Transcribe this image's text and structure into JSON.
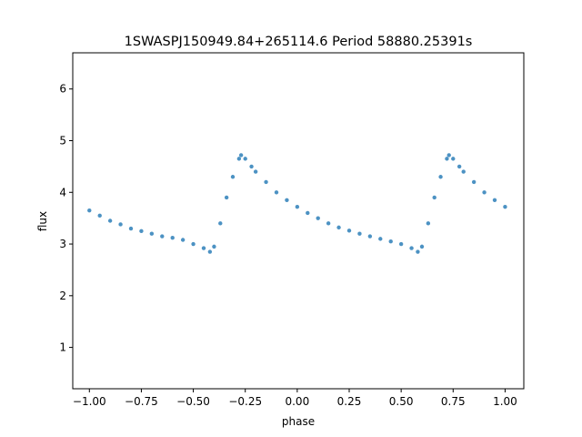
{
  "chart_data": {
    "type": "scatter",
    "title": "1SWASPJ150949.84+265114.6 Period 58880.25391s",
    "xlabel": "phase",
    "ylabel": "flux",
    "xlim": [
      -1.08,
      1.09
    ],
    "ylim": [
      0.2,
      6.7
    ],
    "xticks": [
      -1.0,
      -0.75,
      -0.5,
      -0.25,
      0.0,
      0.25,
      0.5,
      0.75,
      1.0
    ],
    "xtick_labels": [
      "−1.00",
      "−0.75",
      "−0.50",
      "−0.25",
      "0.00",
      "0.25",
      "0.50",
      "0.75",
      "1.00"
    ],
    "yticks": [
      1,
      2,
      3,
      4,
      5,
      6
    ],
    "ytick_labels": [
      "1",
      "2",
      "3",
      "4",
      "5",
      "6"
    ],
    "grid": false,
    "marker_color": "#1f77b4",
    "series": [
      {
        "x": [
          -1.0,
          -0.95,
          -0.9,
          -0.85,
          -0.8,
          -0.75,
          -0.7,
          -0.65,
          -0.6,
          -0.55,
          -0.5,
          -0.45,
          -0.42,
          -0.4,
          -0.37,
          -0.34,
          -0.31,
          -0.28,
          -0.27,
          -0.25,
          -0.22,
          -0.2,
          -0.15,
          -0.1,
          -0.05,
          0.0,
          0.05,
          0.1,
          0.15,
          0.2,
          0.25,
          0.3,
          0.35,
          0.4,
          0.45,
          0.5,
          0.55,
          0.58,
          0.6,
          0.63,
          0.66,
          0.69,
          0.72,
          0.73,
          0.75,
          0.78,
          0.8,
          0.85,
          0.9,
          0.95,
          1.0
        ],
        "y": [
          3.65,
          3.55,
          3.45,
          3.38,
          3.3,
          3.25,
          3.2,
          3.15,
          3.12,
          3.08,
          3.0,
          2.92,
          2.85,
          2.95,
          3.4,
          3.9,
          4.3,
          4.65,
          4.72,
          4.65,
          4.5,
          4.4,
          4.2,
          4.0,
          3.85,
          3.72,
          3.6,
          3.5,
          3.4,
          3.32,
          3.26,
          3.2,
          3.15,
          3.1,
          3.05,
          3.0,
          2.92,
          2.85,
          2.95,
          3.4,
          3.9,
          4.3,
          4.65,
          4.72,
          4.65,
          4.5,
          4.4,
          4.2,
          4.0,
          3.85,
          3.72
        ]
      }
    ]
  }
}
